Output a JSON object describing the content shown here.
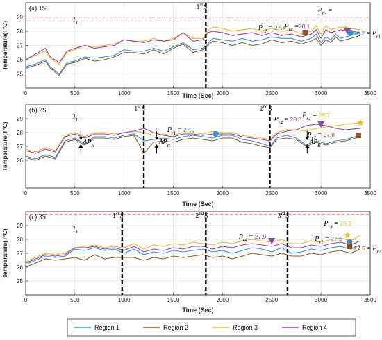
{
  "colors": {
    "region1": "#3a8fd6",
    "region2": "#8b5a2b",
    "region3": "#e8b830",
    "region4": "#8e44ad",
    "threshold": "#e02020"
  },
  "legend": [
    "Region 1",
    "Region 2",
    "Region 3",
    "Region 4"
  ],
  "chart_data": [
    {
      "type": "line",
      "title": "(a) 1S",
      "xlabel": "Time (Sec)",
      "ylabel": "Temperature(T°C)",
      "xlim": [
        0,
        3500
      ],
      "ylim": [
        24,
        30
      ],
      "xticks": [
        0,
        500,
        1000,
        1500,
        2000,
        2500,
        3000,
        3500
      ],
      "yticks": [
        25,
        26,
        27,
        28,
        29
      ],
      "grid": true,
      "threshold": {
        "label": "Th",
        "y": 29
      },
      "switch_lines": [
        {
          "x": 1830,
          "label": "1stS"
        }
      ],
      "x": [
        0,
        100,
        200,
        250,
        340,
        420,
        500,
        600,
        700,
        800,
        900,
        1000,
        1100,
        1200,
        1300,
        1400,
        1500,
        1600,
        1700,
        1800,
        1850,
        1900,
        2000,
        2100,
        2200,
        2300,
        2400,
        2500,
        2600,
        2700,
        2800,
        2900,
        2950,
        3000,
        3050,
        3100,
        3150,
        3200,
        3300,
        3400
      ],
      "series": [
        {
          "name": "Region 1",
          "values": [
            25.5,
            25.7,
            26.0,
            25.5,
            25.0,
            25.8,
            25.9,
            26.2,
            26.1,
            26.2,
            26.3,
            26.7,
            26.6,
            26.6,
            26.8,
            26.6,
            26.9,
            27.2,
            26.7,
            26.8,
            27.1,
            27.5,
            27.4,
            27.3,
            27.5,
            27.3,
            27.4,
            27.6,
            27.5,
            27.5,
            27.3,
            27.5,
            27.8,
            27.2,
            27.6,
            27.4,
            27.8,
            27.5,
            27.7,
            27.9
          ]
        },
        {
          "name": "Region 2",
          "values": [
            25.4,
            25.6,
            25.9,
            25.4,
            24.9,
            25.7,
            25.8,
            26.1,
            25.9,
            26.0,
            26.2,
            26.5,
            26.5,
            26.4,
            26.7,
            26.4,
            26.8,
            27.1,
            26.5,
            26.7,
            27.0,
            27.3,
            27.2,
            27.0,
            27.2,
            27.0,
            27.1,
            27.4,
            27.2,
            27.3,
            27.1,
            27.3,
            27.5,
            27.0,
            27.4,
            27.2,
            27.6,
            27.3,
            27.5,
            27.7
          ]
        },
        {
          "name": "Region 3",
          "values": [
            26.0,
            26.3,
            26.6,
            26.1,
            25.7,
            26.5,
            26.7,
            27.0,
            26.9,
            27.0,
            27.1,
            27.4,
            27.3,
            27.3,
            27.5,
            27.3,
            27.5,
            27.9,
            27.5,
            27.5,
            28.0,
            28.3,
            28.2,
            28.0,
            28.1,
            28.2,
            28.0,
            28.2,
            28.0,
            28.1,
            27.8,
            28.0,
            28.4,
            27.8,
            28.4,
            28.1,
            28.2,
            28.3,
            28.2,
            28.1
          ]
        },
        {
          "name": "Region 4",
          "values": [
            26.0,
            26.4,
            26.8,
            26.2,
            25.8,
            26.6,
            26.8,
            27.0,
            26.8,
            26.9,
            27.0,
            27.4,
            27.3,
            27.2,
            27.4,
            27.3,
            27.4,
            27.9,
            27.3,
            27.4,
            27.9,
            28.0,
            27.9,
            27.7,
            27.8,
            27.9,
            27.7,
            27.9,
            27.7,
            27.8,
            27.6,
            27.8,
            28.1,
            27.5,
            28.1,
            27.9,
            28.0,
            28.1,
            28.0,
            27.9
          ]
        }
      ],
      "annotations": [
        {
          "text": "Pr2 = ",
          "value": "27.4",
          "series": "Region 2",
          "x": 2840,
          "y": 27.9,
          "marker": "square"
        },
        {
          "text": "Pr3 =",
          "value": "",
          "series": "Region 3",
          "x": 3250,
          "y": 28.2,
          "marker": "star"
        },
        {
          "text": "Pr4 =",
          "value": "28.1",
          "series": "Region 4",
          "x": 3270,
          "y": 28.0,
          "marker": "triangle-down"
        },
        {
          "text": "= Pr1",
          "value": "28.2",
          "series": "Region 1",
          "x": 3300,
          "y": 27.9,
          "marker": "circle"
        }
      ]
    },
    {
      "type": "line",
      "title": "(b) 2S",
      "xlabel": "Time (Sec)",
      "ylabel": "Temperature(T°C)",
      "xlim": [
        0,
        3500
      ],
      "ylim": [
        24,
        30
      ],
      "xticks": [
        0,
        500,
        1000,
        1500,
        2000,
        2500,
        3000,
        3500
      ],
      "yticks": [
        26,
        27,
        28,
        29
      ],
      "grid": true,
      "threshold": {
        "label": "Th",
        "y": null
      },
      "switch_lines": [
        {
          "x": 1200,
          "label": "1stS"
        },
        {
          "x": 2480,
          "label": "2ndS"
        }
      ],
      "delta_labels": [
        {
          "text": "ΔPR",
          "x": 560
        },
        {
          "text": "ΔPR",
          "x": 1330
        },
        {
          "text": "ΔPR",
          "x": 2860
        }
      ],
      "x": [
        0,
        100,
        200,
        300,
        400,
        500,
        600,
        700,
        800,
        900,
        1000,
        1100,
        1200,
        1300,
        1400,
        1500,
        1600,
        1700,
        1800,
        1900,
        2000,
        2100,
        2200,
        2300,
        2400,
        2480,
        2550,
        2650,
        2750,
        2850,
        2950,
        3050,
        3150,
        3250,
        3400
      ],
      "series": [
        {
          "name": "Region 1",
          "values": [
            26.3,
            26.1,
            26.4,
            26.2,
            27.4,
            27.6,
            27.2,
            27.7,
            27.7,
            27.6,
            27.8,
            27.9,
            27.4,
            27.5,
            27.6,
            27.5,
            27.7,
            27.8,
            27.7,
            27.6,
            27.8,
            27.8,
            27.5,
            27.4,
            27.2,
            27.0,
            27.6,
            27.8,
            27.6,
            27.1,
            27.4,
            27.2,
            27.4,
            27.5,
            27.8
          ]
        },
        {
          "name": "Region 2",
          "values": [
            26.2,
            26.0,
            26.3,
            26.1,
            27.3,
            27.5,
            27.1,
            27.6,
            27.6,
            27.5,
            27.7,
            27.8,
            26.5,
            27.3,
            27.4,
            27.3,
            27.5,
            27.6,
            27.5,
            27.4,
            27.6,
            27.6,
            27.3,
            27.2,
            27.0,
            26.9,
            27.5,
            27.6,
            27.5,
            27.0,
            27.3,
            27.1,
            27.3,
            27.4,
            27.7
          ]
        },
        {
          "name": "Region 3",
          "values": [
            26.8,
            26.6,
            26.9,
            26.7,
            27.8,
            28.0,
            27.7,
            28.0,
            28.0,
            27.9,
            28.0,
            28.1,
            28.0,
            27.8,
            27.9,
            27.8,
            28.0,
            28.0,
            27.9,
            28.1,
            28.0,
            28.0,
            27.8,
            27.7,
            27.6,
            27.5,
            28.0,
            28.2,
            28.2,
            28.1,
            28.3,
            28.4,
            28.5,
            28.6,
            28.7
          ]
        },
        {
          "name": "Region 4",
          "values": [
            26.7,
            26.5,
            26.8,
            26.6,
            27.7,
            27.9,
            27.6,
            27.9,
            27.9,
            27.8,
            28.0,
            28.1,
            28.3,
            28.0,
            27.8,
            27.7,
            27.9,
            27.9,
            27.8,
            27.9,
            27.9,
            27.9,
            27.7,
            27.6,
            27.5,
            27.4,
            27.9,
            28.1,
            28.2,
            28.5,
            28.6,
            28.5,
            28.3,
            28.2,
            28.3
          ]
        }
      ],
      "annotations": [
        {
          "text": "Pr1 = ",
          "value": "27.9",
          "series": "Region 1",
          "x": 1930,
          "y": 27.9,
          "marker": "circle"
        },
        {
          "text": "Pr4 = ",
          "value": "28.6",
          "series": "Region 4",
          "x": 3000,
          "y": 28.6,
          "marker": "triangle-down"
        },
        {
          "text": "Pr3 = ",
          "value": "28.7",
          "series": "Region 3",
          "x": 3400,
          "y": 28.7,
          "marker": "star"
        },
        {
          "text": "Pr2 = ",
          "value": "27.8",
          "series": "Region 2",
          "x": 3380,
          "y": 27.8,
          "marker": "square"
        }
      ]
    },
    {
      "type": "line",
      "title": "(c) 3S",
      "xlabel": "Time (Sec)",
      "ylabel": "Temperature(T°C)",
      "xlim": [
        0,
        3500
      ],
      "ylim": [
        24,
        30
      ],
      "xticks": [
        0,
        500,
        1000,
        1500,
        2000,
        2500,
        3000,
        3500
      ],
      "yticks": [
        25,
        26,
        27,
        28,
        29
      ],
      "grid": true,
      "threshold": {
        "label": "Th",
        "y": 29.8
      },
      "switch_lines": [
        {
          "x": 980,
          "label": "1stS"
        },
        {
          "x": 1830,
          "label": "2ndS"
        },
        {
          "x": 2660,
          "label": "3rdS"
        }
      ],
      "x": [
        0,
        100,
        200,
        300,
        400,
        500,
        600,
        700,
        800,
        900,
        1000,
        1100,
        1200,
        1300,
        1400,
        1500,
        1600,
        1700,
        1800,
        1900,
        2000,
        2100,
        2200,
        2300,
        2400,
        2500,
        2600,
        2700,
        2800,
        2900,
        3000,
        3100,
        3200,
        3300,
        3400
      ],
      "series": [
        {
          "name": "Region 1",
          "values": [
            26.2,
            26.5,
            26.8,
            26.7,
            26.8,
            27.3,
            27.2,
            27.4,
            27.2,
            27.3,
            27.0,
            27.3,
            26.9,
            27.1,
            27.0,
            27.2,
            27.1,
            27.2,
            27.3,
            27.1,
            27.2,
            27.0,
            27.2,
            27.4,
            27.3,
            27.1,
            27.4,
            27.0,
            27.1,
            27.3,
            27.2,
            27.4,
            27.5,
            27.3,
            27.6
          ]
        },
        {
          "name": "Region 2",
          "values": [
            26.0,
            26.3,
            26.6,
            26.5,
            26.6,
            26.7,
            26.5,
            26.9,
            26.6,
            26.7,
            26.7,
            26.7,
            26.5,
            26.7,
            26.6,
            26.8,
            26.7,
            26.8,
            26.9,
            26.7,
            26.8,
            26.6,
            26.8,
            27.0,
            26.9,
            26.8,
            27.0,
            26.8,
            26.8,
            27.0,
            26.9,
            27.1,
            27.2,
            27.0,
            27.3
          ]
        },
        {
          "name": "Region 3",
          "values": [
            26.4,
            26.7,
            27.0,
            26.9,
            27.0,
            27.4,
            27.5,
            27.6,
            27.4,
            27.5,
            27.4,
            27.7,
            27.3,
            27.6,
            27.5,
            27.7,
            27.6,
            27.8,
            27.7,
            27.6,
            27.8,
            27.7,
            27.9,
            28.0,
            27.9,
            27.8,
            28.0,
            27.7,
            27.7,
            27.9,
            27.8,
            28.0,
            28.1,
            27.9,
            28.3
          ]
        },
        {
          "name": "Region 4",
          "values": [
            26.3,
            26.6,
            26.9,
            26.8,
            26.9,
            27.4,
            27.4,
            27.5,
            27.3,
            27.4,
            27.2,
            27.5,
            27.1,
            27.3,
            27.2,
            27.4,
            27.3,
            27.5,
            27.5,
            27.3,
            27.5,
            27.4,
            27.6,
            27.7,
            27.6,
            27.5,
            27.7,
            27.4,
            27.4,
            27.6,
            27.5,
            27.7,
            27.8,
            27.6,
            27.9
          ]
        }
      ],
      "annotations": [
        {
          "text": "Pr4 = ",
          "value": "27.9",
          "series": "Region 4",
          "x": 2500,
          "y": 27.9,
          "marker": "triangle-down"
        },
        {
          "text": "Pr3 = ",
          "value": "28.3",
          "series": "Region 3",
          "x": 3270,
          "y": 28.3,
          "marker": "star"
        },
        {
          "text": "Pr1 = ",
          "value": "27.5",
          "series": "Region 1",
          "x": 3290,
          "y": 27.8,
          "marker": "circle"
        },
        {
          "text": "= Pr2",
          "value": "27.5",
          "series": "Region 2",
          "x": 3290,
          "y": 27.5,
          "marker": "square"
        }
      ]
    }
  ]
}
